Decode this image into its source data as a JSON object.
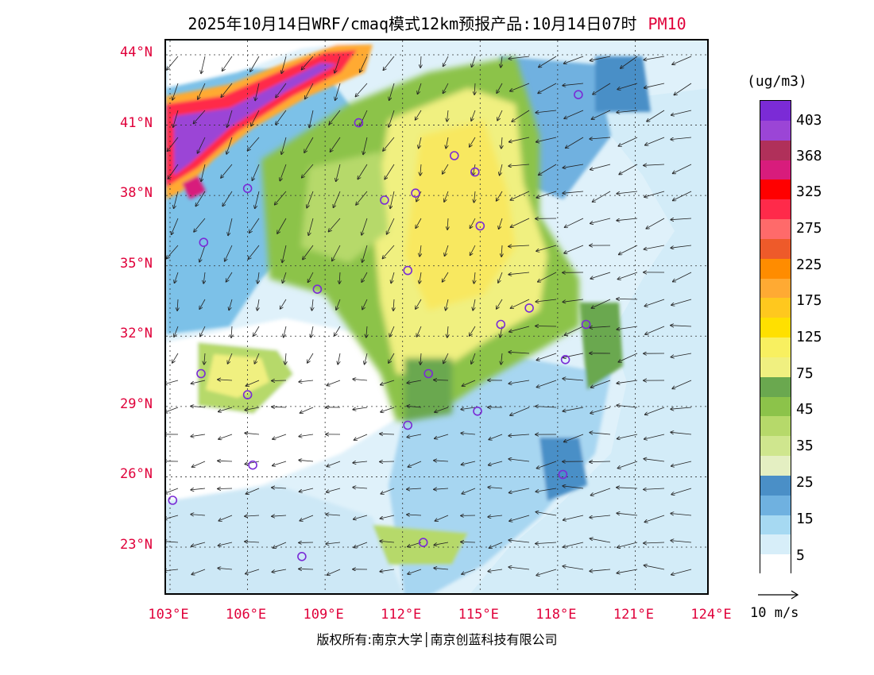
{
  "title": {
    "text": "2025年10月14日WRF/cmaq模式12km预报产品:10月14日07时",
    "variable": "PM10"
  },
  "map": {
    "lat_labels": [
      "44°N",
      "41°N",
      "38°N",
      "35°N",
      "32°N",
      "29°N",
      "26°N",
      "23°N"
    ],
    "lon_labels": [
      "103°E",
      "106°E",
      "109°E",
      "112°E",
      "115°E",
      "118°E",
      "121°E",
      "124°E"
    ],
    "label_color": "#e0003a"
  },
  "legend": {
    "unit": "(ug/m3)",
    "ticks": [
      "403",
      "368",
      "325",
      "275",
      "225",
      "175",
      "125",
      "75",
      "45",
      "35",
      "25",
      "15",
      "5"
    ],
    "colors_top_to_bottom": [
      "#7b2bd6",
      "#9b45d6",
      "#b0305a",
      "#d81c7c",
      "#ff0000",
      "#ff2a4a",
      "#ff6a6a",
      "#ee5a2a",
      "#ff8c00",
      "#ffaa33",
      "#ffc81e",
      "#ffe000",
      "#f8f060",
      "#f0f080",
      "#6aa84f",
      "#8cc34a",
      "#b6d96a",
      "#cfe68e",
      "#e4efc2",
      "#4a8fc7",
      "#6fb1e0",
      "#a6d9f2",
      "#d7eef9",
      "#ffffff"
    ]
  },
  "scale": {
    "label": "10 m/s"
  },
  "footer": {
    "copyright": "版权所有:南京大学│南京创蓝科技有限公司"
  },
  "cities": [
    {
      "lon": 118.8,
      "lat": 42.3
    },
    {
      "lon": 110.3,
      "lat": 41.1
    },
    {
      "lon": 114.0,
      "lat": 39.7
    },
    {
      "lon": 114.8,
      "lat": 39.0
    },
    {
      "lon": 106.0,
      "lat": 38.3
    },
    {
      "lon": 111.3,
      "lat": 37.8
    },
    {
      "lon": 112.5,
      "lat": 38.1
    },
    {
      "lon": 115.0,
      "lat": 36.7
    },
    {
      "lon": 104.3,
      "lat": 36.0
    },
    {
      "lon": 112.2,
      "lat": 34.8
    },
    {
      "lon": 108.7,
      "lat": 34.0
    },
    {
      "lon": 116.9,
      "lat": 33.2
    },
    {
      "lon": 115.8,
      "lat": 32.5
    },
    {
      "lon": 119.1,
      "lat": 32.5
    },
    {
      "lon": 118.3,
      "lat": 31.0
    },
    {
      "lon": 104.2,
      "lat": 30.4
    },
    {
      "lon": 113.0,
      "lat": 30.4
    },
    {
      "lon": 106.0,
      "lat": 29.5
    },
    {
      "lon": 114.9,
      "lat": 28.8
    },
    {
      "lon": 112.2,
      "lat": 28.2
    },
    {
      "lon": 118.2,
      "lat": 26.1
    },
    {
      "lon": 106.2,
      "lat": 26.5
    },
    {
      "lon": 103.1,
      "lat": 25.0
    },
    {
      "lon": 108.1,
      "lat": 22.6
    },
    {
      "lon": 112.8,
      "lat": 23.2
    }
  ]
}
